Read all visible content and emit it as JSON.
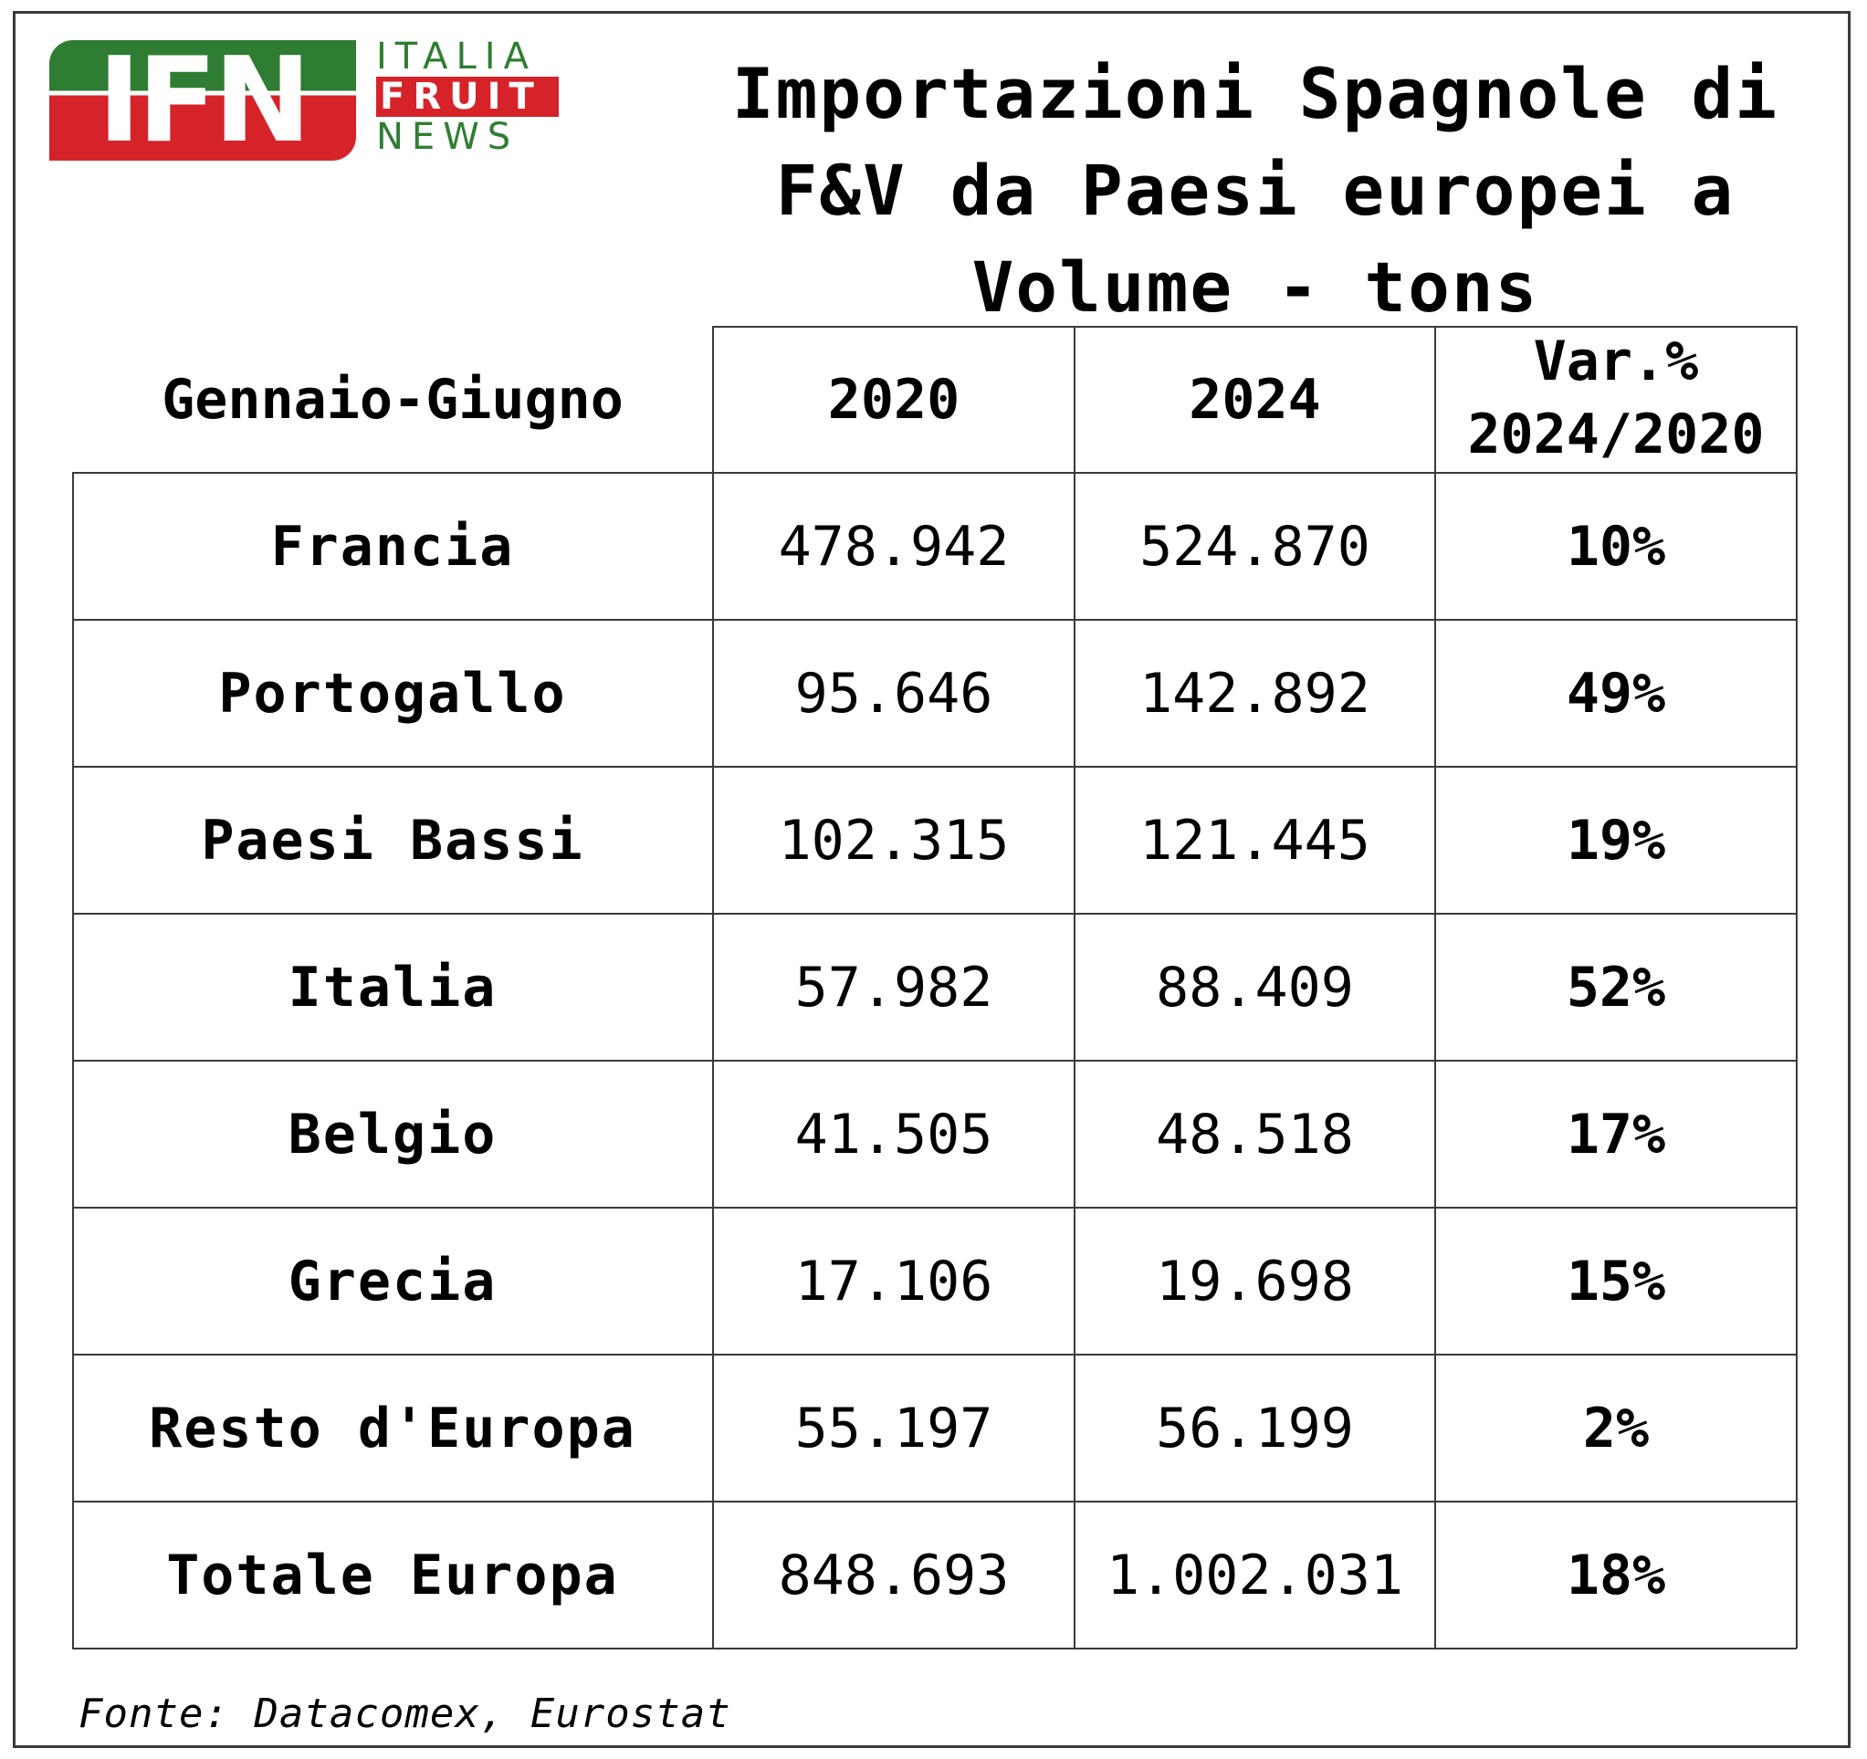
{
  "logo": {
    "mark": "IFN",
    "line1": "ITALIA",
    "line2": "FRUIT",
    "line3": "NEWS"
  },
  "colors": {
    "logo_green": "#2f7d32",
    "logo_red": "#d6232a",
    "border": "#3a3a3a"
  },
  "chart_data": {
    "type": "table",
    "title": "Importazioni Spagnole di F&V da Paesi europei a Volume - tons",
    "columns": [
      "Gennaio-Giugno",
      "2020",
      "2024",
      "Var.% 2024/2020"
    ],
    "rows": [
      {
        "paese": "Francia",
        "y2020": "478.942",
        "y2024": "524.870",
        "var": "10%"
      },
      {
        "paese": "Portogallo",
        "y2020": "95.646",
        "y2024": "142.892",
        "var": "49%"
      },
      {
        "paese": "Paesi Bassi",
        "y2020": "102.315",
        "y2024": "121.445",
        "var": "19%"
      },
      {
        "paese": "Italia",
        "y2020": "57.982",
        "y2024": "88.409",
        "var": "52%"
      },
      {
        "paese": "Belgio",
        "y2020": "41.505",
        "y2024": "48.518",
        "var": "17%"
      },
      {
        "paese": "Grecia",
        "y2020": "17.106",
        "y2024": "19.698",
        "var": "15%"
      },
      {
        "paese": "Resto d'Europa",
        "y2020": "55.197",
        "y2024": "56.199",
        "var": "2%"
      },
      {
        "paese": "Totale Europa",
        "y2020": "848.693",
        "y2024": "1.002.031",
        "var": "18%"
      }
    ],
    "source": "Fonte: Datacomex, Eurostat"
  }
}
